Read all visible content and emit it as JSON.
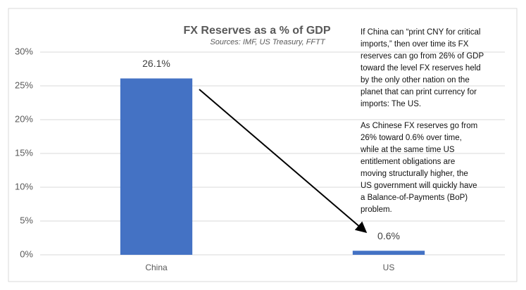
{
  "chart_data": {
    "type": "bar",
    "title": "FX Reserves as a % of GDP",
    "subtitle": "Sources: IMF, US Treasury, FFTT",
    "categories": [
      "China",
      "US"
    ],
    "values": [
      26.1,
      0.6
    ],
    "value_labels": [
      "26.1%",
      "0.6%"
    ],
    "color": "#4472c4",
    "ylim": [
      0,
      30
    ],
    "yticks": [
      {
        "value": 0,
        "label": "0%"
      },
      {
        "value": 5,
        "label": "5%"
      },
      {
        "value": 10,
        "label": "10%"
      },
      {
        "value": 15,
        "label": "15%"
      },
      {
        "value": 20,
        "label": "20%"
      },
      {
        "value": 25,
        "label": "25%"
      },
      {
        "value": 30,
        "label": "30%"
      }
    ],
    "grid": true,
    "annotations": [
      [
        "If China can “print CNY for critical",
        "imports,” then over time its FX",
        "reserves can go from 26% of GDP",
        "toward the level FX reserves held",
        "by the only other nation on the",
        "planet that can print currency for",
        "imports: The US."
      ],
      [
        "As Chinese FX reserves go from",
        "26% toward 0.6% over time,",
        "while at the same time US",
        "entitlement obligations are",
        "moving structurally higher, the",
        "US government will quickly have",
        "a Balance-of-Payments (BoP)",
        "problem."
      ]
    ]
  }
}
